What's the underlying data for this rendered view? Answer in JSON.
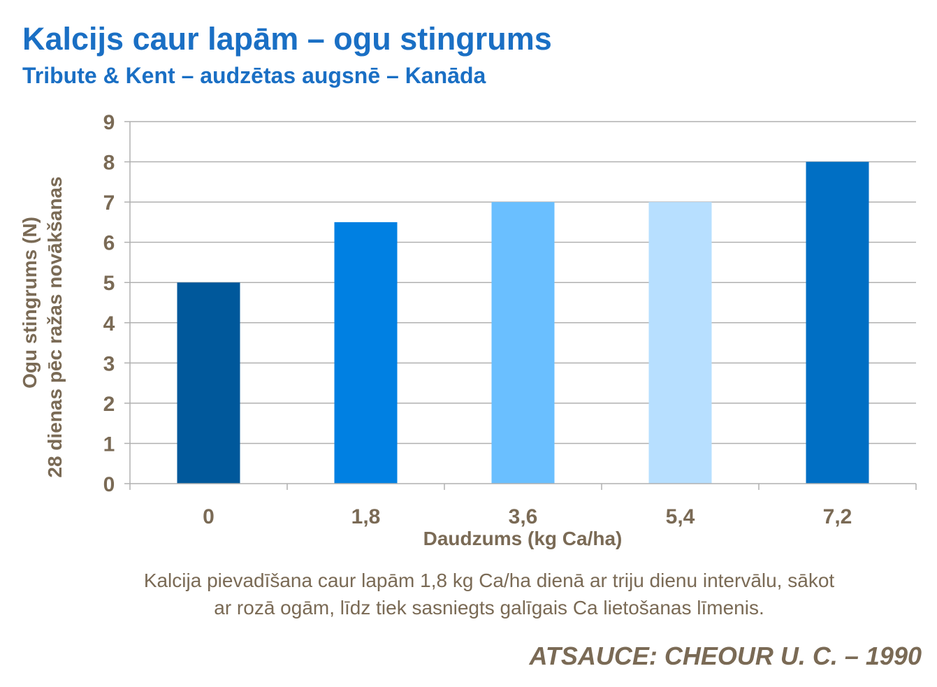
{
  "chart_data": {
    "type": "bar",
    "title": "Kalcijs caur lapām – ogu stingrums",
    "subtitle": "Tribute & Kent – audzētas augsnē – Kanāda",
    "ylabel_line1": "Ogu stingrums (N)",
    "ylabel_line2": "28 dienas pēc ražas novākšanas",
    "xlabel": "Daudzums (kg Ca/ha)",
    "categories": [
      "0",
      "1,8",
      "3,6",
      "5,4",
      "7,2"
    ],
    "values": [
      5,
      6.5,
      7,
      7,
      8
    ],
    "colors": [
      "#00589b",
      "#0080e2",
      "#6abfff",
      "#b7dfff",
      "#006fc4"
    ],
    "ylim": [
      0,
      9
    ],
    "yticks": [
      0,
      1,
      2,
      3,
      4,
      5,
      6,
      7,
      8,
      9
    ],
    "grid": true,
    "legend": "none"
  },
  "note_line1": "Kalcija pievadīšana caur lapām 1,8 kg Ca/ha dienā ar triju dienu intervālu, sākot",
  "note_line2": "ar rozā ogām, līdz tiek sasniegts galīgais Ca lietošanas līmenis.",
  "source": "ATSAUCE: CHEOUR U. C. – 1990",
  "colors": {
    "title": "#1a6fc4",
    "text": "#7a6a55",
    "grid": "#b0b0b0"
  }
}
